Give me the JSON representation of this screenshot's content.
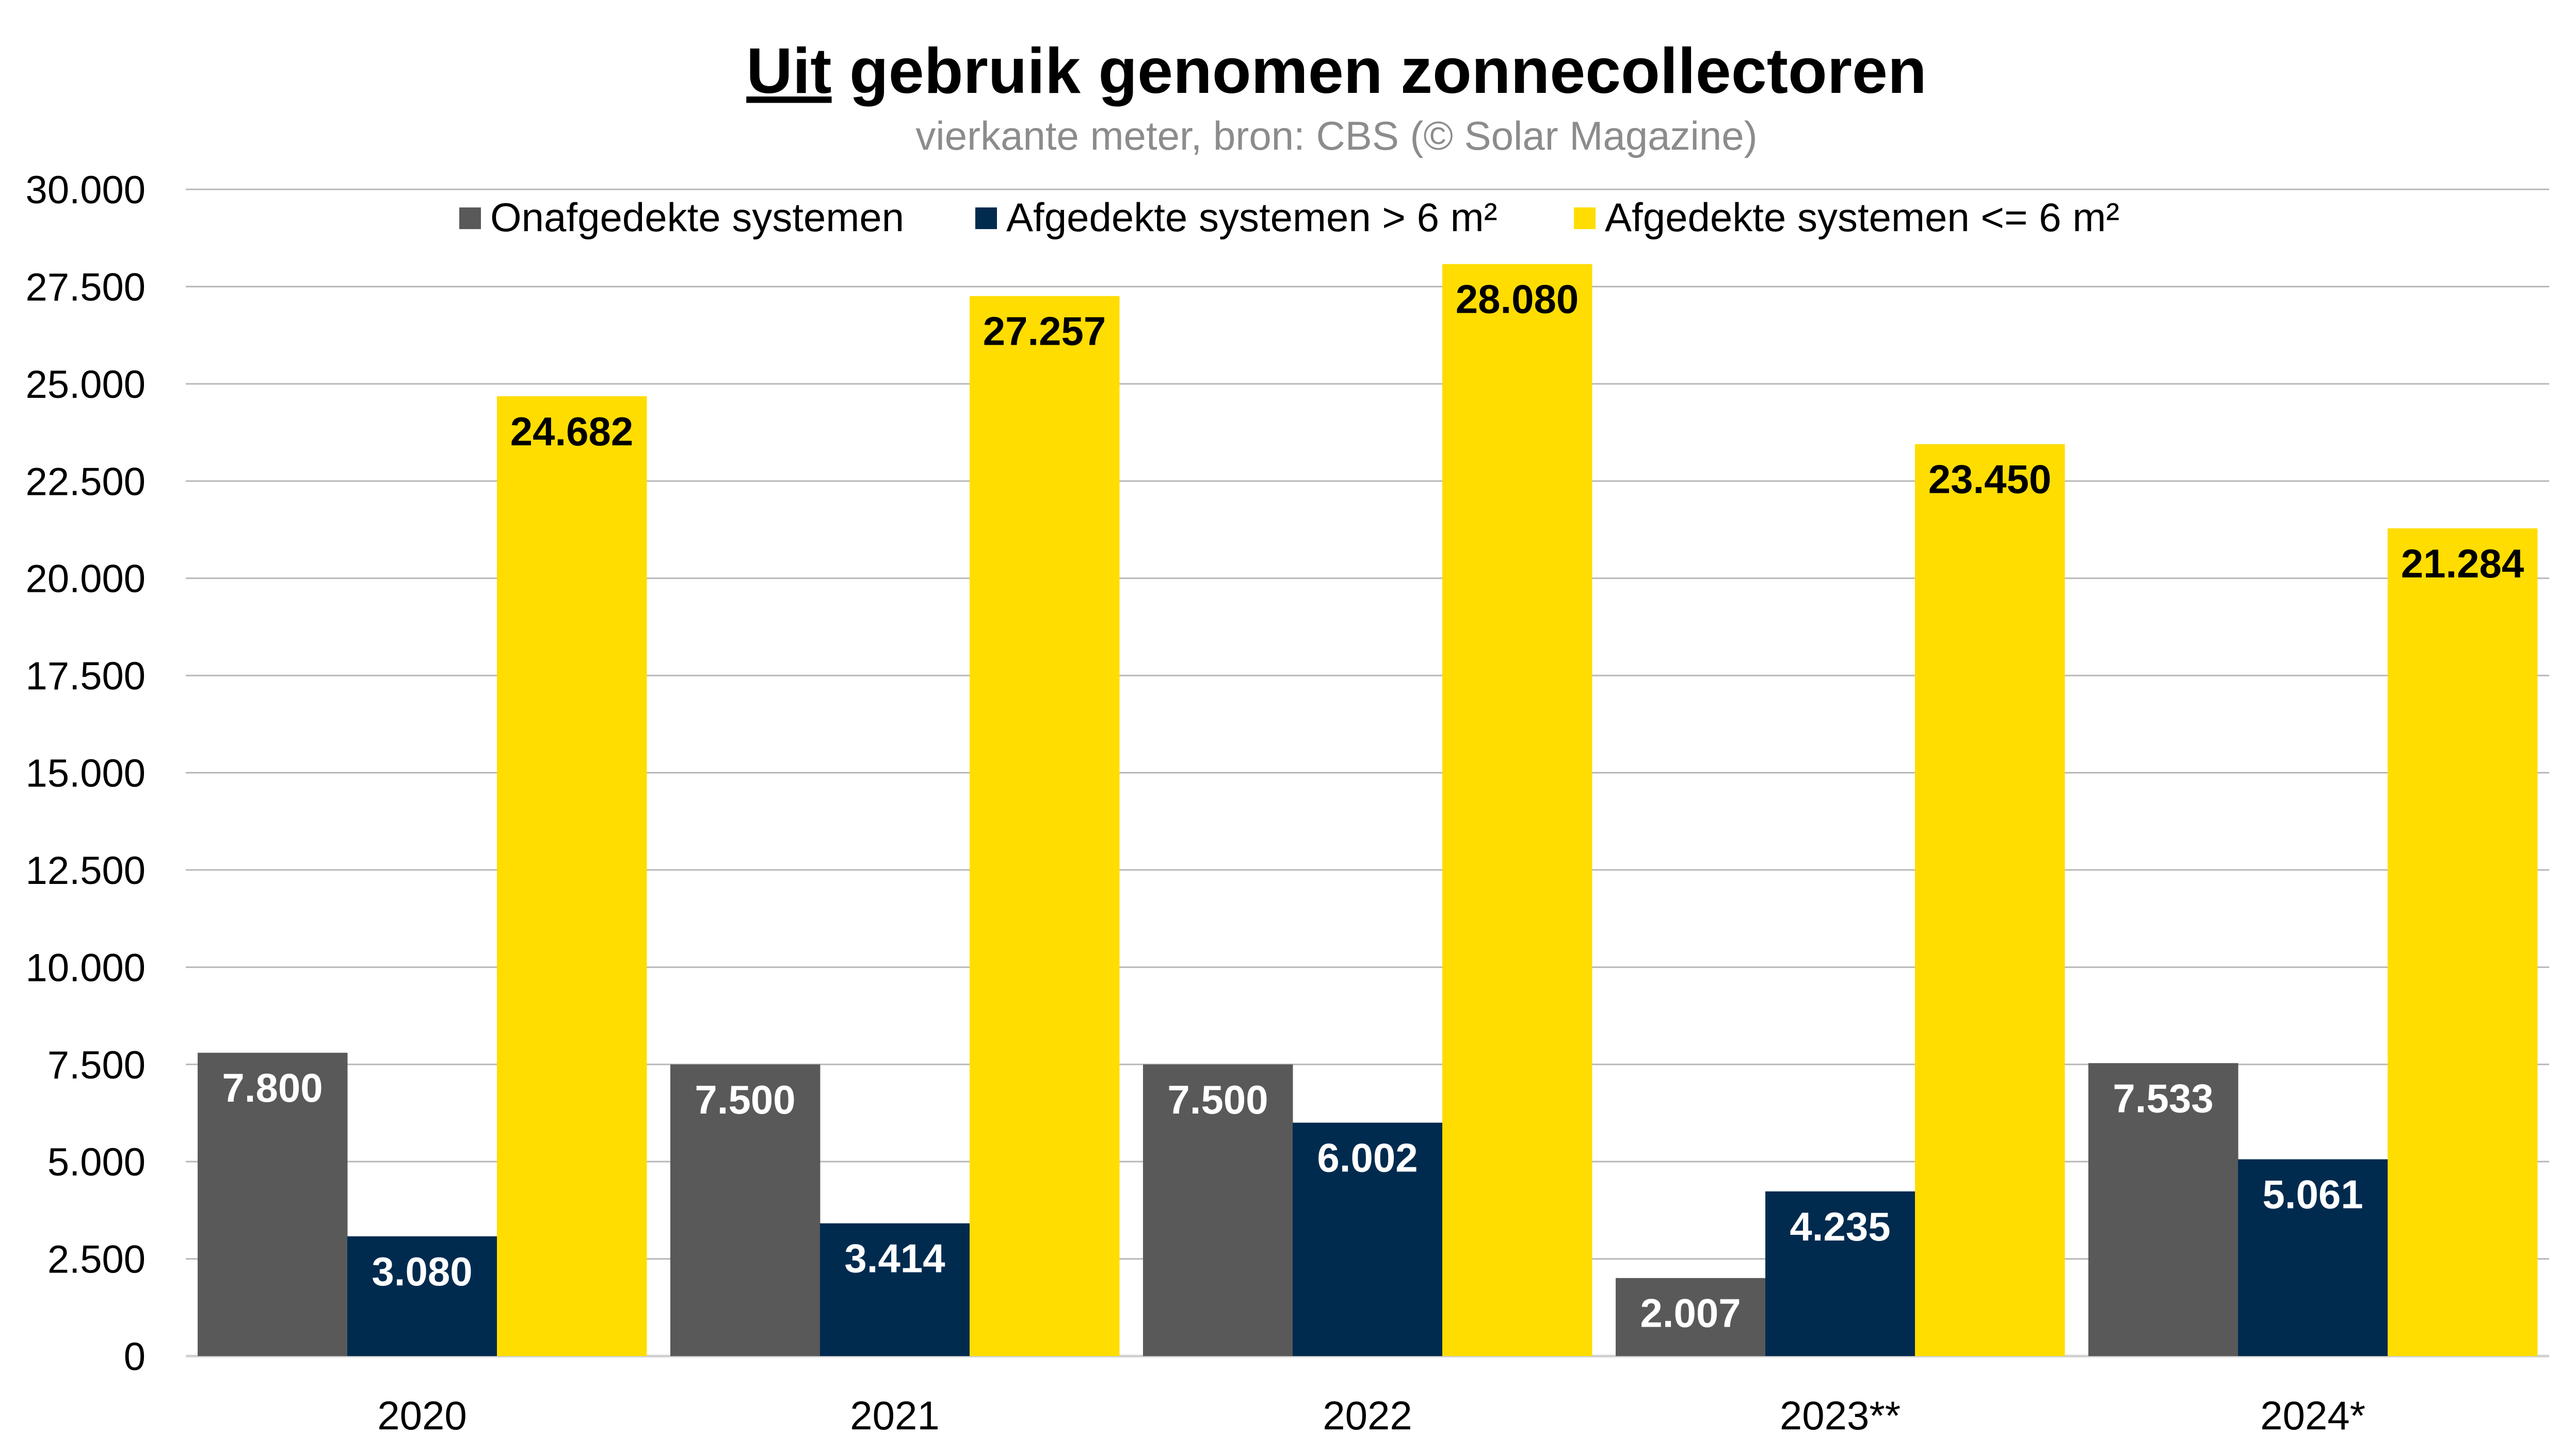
{
  "chart_data": {
    "type": "bar",
    "title_underlined": "Uit",
    "title_rest": " gebruik genomen zonnecollectoren",
    "subtitle": "vierkante meter, bron: CBS (© Solar Magazine)",
    "xlabel": "",
    "ylabel": "",
    "ylim": [
      0,
      30000
    ],
    "yticks": [
      0,
      2500,
      5000,
      7500,
      10000,
      12500,
      15000,
      17500,
      20000,
      22500,
      25000,
      27500,
      30000
    ],
    "ytick_labels": [
      "0",
      "2.500",
      "5.000",
      "7.500",
      "10.000",
      "12.500",
      "15.000",
      "17.500",
      "20.000",
      "22.500",
      "25.000",
      "27.500",
      "30.000"
    ],
    "grid": true,
    "legend_position": "top",
    "categories": [
      "2020",
      "2021",
      "2022",
      "2023**",
      "2024*"
    ],
    "series": [
      {
        "name": "Onafgedekte systemen",
        "color": "#595959",
        "label_color": "#ffffff",
        "values": [
          7800,
          7500,
          7500,
          2007,
          7533
        ],
        "labels": [
          "7.800",
          "7.500",
          "7.500",
          "2.007",
          "7.533"
        ]
      },
      {
        "name": "Afgedekte systemen > 6 m²",
        "color": "#002B4F",
        "label_color": "#ffffff",
        "values": [
          3080,
          3414,
          6002,
          4235,
          5061
        ],
        "labels": [
          "3.080",
          "3.414",
          "6.002",
          "4.235",
          "5.061"
        ]
      },
      {
        "name": "Afgedekte systemen <= 6 m²",
        "color": "#FFDD00",
        "label_color": "#000000",
        "values": [
          24682,
          27257,
          28080,
          23450,
          21284
        ],
        "labels": [
          "24.682",
          "27.257",
          "28.080",
          "23.450",
          "21.284"
        ]
      }
    ]
  }
}
